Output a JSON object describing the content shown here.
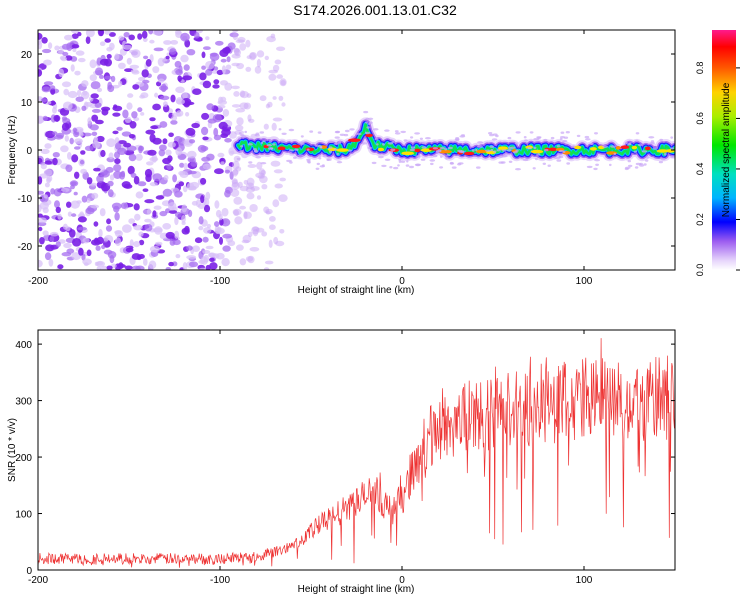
{
  "title": "S174.2026.001.13.01.C32",
  "colors": {
    "spectrogram_low": "#9c5cf0",
    "signal_line": "#ee3333",
    "frame": "#000000"
  },
  "chart_data": [
    {
      "type": "heatmap",
      "name": "spectrogram",
      "xlabel": "Height of straight line (km)",
      "ylabel": "Frequency (Hz)",
      "xlim": [
        -200,
        150
      ],
      "ylim": [
        -25,
        25
      ],
      "xticks": [
        -200,
        -100,
        0,
        100
      ],
      "yticks": [
        -20,
        -10,
        0,
        10,
        20
      ],
      "xtick_labels": [
        "-200",
        "-100",
        "0",
        "100"
      ],
      "ytick_labels": [
        "-20",
        "-10",
        "0",
        "10",
        "20"
      ],
      "noise_region_km": [
        -200,
        -65
      ],
      "signal_track": {
        "description_x_km": [
          -90,
          -70,
          -50,
          -30,
          -22,
          -20,
          -15,
          0,
          50,
          100,
          150
        ],
        "frequency_hz": [
          1,
          0.5,
          0,
          0,
          3,
          5,
          1,
          0,
          0,
          0,
          0
        ]
      },
      "colorbar": {
        "label": "Normalized spectral amplitude",
        "range": [
          0,
          0.95
        ],
        "ticks": [
          0,
          0.2,
          0.4,
          0.6,
          0.8
        ],
        "tick_labels": [
          "0.0",
          "0.2",
          "0.4",
          "0.6",
          "0.8"
        ]
      }
    },
    {
      "type": "line",
      "name": "snr",
      "xlabel": "Height of straight line (km)",
      "ylabel": "SNR (10 * v/v)",
      "xlim": [
        -200,
        150
      ],
      "ylim": [
        0,
        425
      ],
      "xticks": [
        -200,
        -100,
        0,
        100
      ],
      "yticks": [
        0,
        100,
        200,
        300,
        400
      ],
      "xtick_labels": [
        "-200",
        "-100",
        "0",
        "100"
      ],
      "ytick_labels": [
        "0",
        "100",
        "200",
        "300",
        "400"
      ],
      "series": [
        {
          "name": "SNR",
          "x": [
            -200,
            -150,
            -100,
            -80,
            -65,
            -55,
            -45,
            -35,
            -25,
            -15,
            -5,
            0,
            10,
            20,
            30,
            50,
            70,
            90,
            110,
            130,
            150
          ],
          "values": [
            20,
            20,
            20,
            25,
            35,
            55,
            80,
            100,
            120,
            140,
            100,
            130,
            210,
            250,
            265,
            280,
            290,
            300,
            305,
            300,
            305
          ]
        }
      ]
    }
  ]
}
